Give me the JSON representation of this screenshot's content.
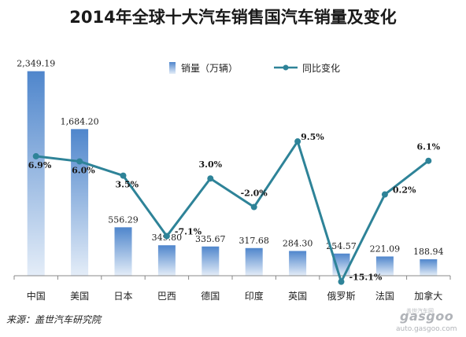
{
  "colors": {
    "bar_top": "#4f86cc",
    "bar_bottom": "#e4edf8",
    "line": "#2e8398",
    "axis": "#888888"
  },
  "chart_data": {
    "type": "bar",
    "title": "2014年全球十大汽车销售国汽车销量及变化",
    "categories": [
      "中国",
      "美国",
      "日本",
      "巴西",
      "德国",
      "印度",
      "英国",
      "俄罗斯",
      "法国",
      "加拿大"
    ],
    "series": [
      {
        "name": "销量（万辆）",
        "type": "bar",
        "values": [
          2349.19,
          1684.2,
          556.29,
          349.8,
          335.67,
          317.68,
          284.3,
          254.57,
          221.09,
          188.94
        ],
        "labels": [
          "2,349.19",
          "1,684.20",
          "556.29",
          "349.80",
          "335.67",
          "317.68",
          "284.30",
          "254.57",
          "221.09",
          "188.94"
        ]
      },
      {
        "name": "同比变化",
        "type": "line",
        "values": [
          6.9,
          6.0,
          3.5,
          -7.1,
          3.0,
          -2.0,
          9.5,
          -15.1,
          0.2,
          6.1
        ],
        "labels": [
          "6.9%",
          "6.0%",
          "3.5%",
          "-7.1%",
          "3.0%",
          "-2.0%",
          "9.5%",
          "-15.1%",
          "0.2%",
          "6.1%"
        ]
      }
    ],
    "ylim_bar": [
      0,
      2400
    ],
    "ylim_line": [
      -20,
      20
    ],
    "legend": "top",
    "grid": false
  },
  "source": "来源：盖世汽车研究院",
  "watermark": {
    "brand": "gasgoo",
    "url": "auto.gasgoo.com",
    "cn": "盖世汽车网"
  }
}
